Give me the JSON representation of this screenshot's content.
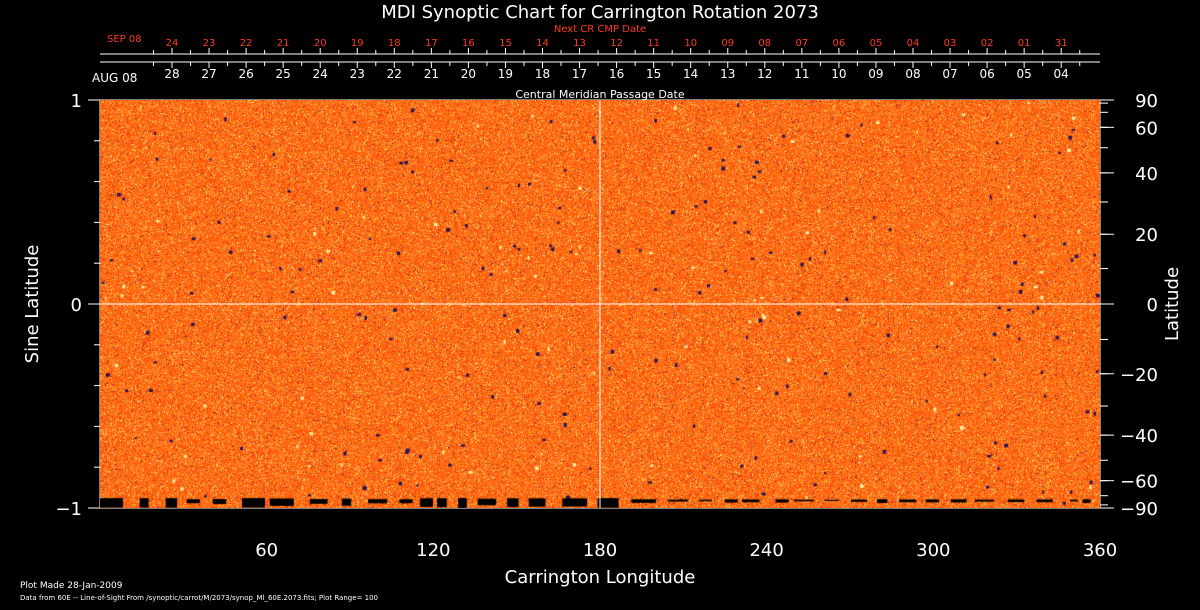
{
  "chart_data": {
    "type": "heatmap",
    "title": "MDI Synoptic Chart for Carrington Rotation 2073",
    "xlabel": "Carrington Longitude",
    "ylabel_left": "Sine Latitude",
    "ylabel_right": "Latitude",
    "xlim": [
      0,
      360
    ],
    "ylim": [
      -1,
      1
    ],
    "x_ticks": [
      60,
      120,
      180,
      240,
      300,
      360
    ],
    "y_left_ticks": [
      {
        "value": 1,
        "label": "1"
      },
      {
        "value": 0,
        "label": "0"
      },
      {
        "value": -1,
        "label": "−1"
      }
    ],
    "y_right_ticks": [
      {
        "lat": 90,
        "label": "90"
      },
      {
        "lat": 60,
        "label": "60"
      },
      {
        "lat": 40,
        "label": "40"
      },
      {
        "lat": 20,
        "label": "20"
      },
      {
        "lat": 0,
        "label": "0"
      },
      {
        "lat": -20,
        "label": "−20"
      },
      {
        "lat": -40,
        "label": "−40"
      },
      {
        "lat": -60,
        "label": "−60"
      },
      {
        "lat": -90,
        "label": "−90"
      }
    ],
    "crosshair": {
      "longitude": 180,
      "sine_latitude": 0
    },
    "cmp_axis": {
      "title": "Central Meridian Passage Date",
      "start_label": "AUG 08",
      "labels": [
        "28",
        "27",
        "26",
        "25",
        "24",
        "23",
        "22",
        "21",
        "20",
        "19",
        "18",
        "17",
        "16",
        "15",
        "14",
        "13",
        "12",
        "11",
        "10",
        "09",
        "08",
        "07",
        "06",
        "05",
        "04"
      ]
    },
    "next_cmp_axis": {
      "title": "Next CR CMP Date",
      "start_label": "SEP 08",
      "labels": [
        "24",
        "23",
        "22",
        "21",
        "20",
        "19",
        "18",
        "17",
        "16",
        "15",
        "14",
        "13",
        "12",
        "11",
        "10",
        "09",
        "08",
        "07",
        "06",
        "05",
        "04",
        "03",
        "02",
        "01",
        "31"
      ]
    },
    "colors": {
      "field": "#ff5a14",
      "negative": "#3a1a5a",
      "positive": "#ffe070",
      "text": "#ffffff",
      "next_axis": "#ff3a1a"
    }
  },
  "footer": {
    "plot_made": "Plot Made 28-Jan-2009",
    "source": "Data from 60E -- Line-of-Sight From /synoptic/carrot/M/2073/synop_Ml_60E.2073.fits; Plot Range=  100"
  }
}
